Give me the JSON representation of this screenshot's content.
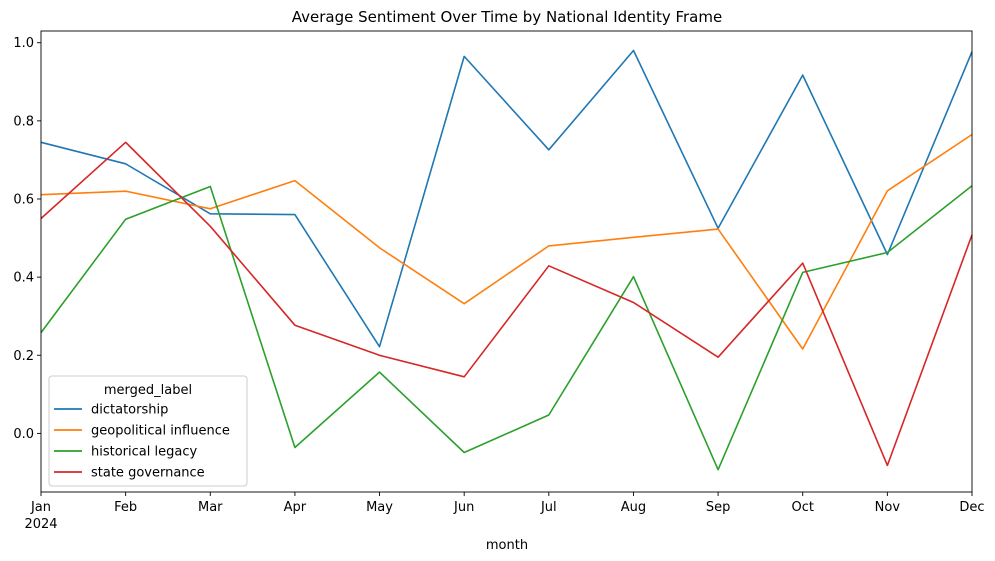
{
  "chart_data": {
    "type": "line",
    "title": "Average Sentiment Over Time by National Identity Frame",
    "xlabel": "month",
    "ylabel": "",
    "categories": [
      "Jan",
      "Feb",
      "Mar",
      "Apr",
      "May",
      "Jun",
      "Jul",
      "Aug",
      "Sep",
      "Oct",
      "Nov",
      "Dec"
    ],
    "year_label": "2024",
    "ylim": [
      -0.15,
      1.03
    ],
    "yticks": [
      0.0,
      0.2,
      0.4,
      0.6,
      0.8,
      1.0
    ],
    "ytick_labels": [
      "0.0",
      "0.2",
      "0.4",
      "0.6",
      "0.8",
      "1.0"
    ],
    "grid": false,
    "legend": {
      "title": "merged_label",
      "placement": "lower-left"
    },
    "series": [
      {
        "name": "dictatorship",
        "color": "#1f77b4",
        "values": [
          0.745,
          0.69,
          0.562,
          0.56,
          0.222,
          0.965,
          0.726,
          0.98,
          0.525,
          0.917,
          0.458,
          0.977
        ]
      },
      {
        "name": "geopolitical influence",
        "color": "#ff7f0e",
        "values": [
          0.611,
          0.62,
          0.575,
          0.647,
          0.475,
          0.332,
          0.48,
          0.502,
          0.523,
          0.216,
          0.621,
          0.765
        ]
      },
      {
        "name": "historical legacy",
        "color": "#2ca02c",
        "values": [
          0.258,
          0.548,
          0.632,
          -0.036,
          0.157,
          -0.049,
          0.047,
          0.401,
          -0.093,
          0.412,
          0.463,
          0.634
        ]
      },
      {
        "name": "state governance",
        "color": "#d62728",
        "values": [
          0.55,
          0.745,
          0.53,
          0.277,
          0.2,
          0.145,
          0.429,
          0.335,
          0.195,
          0.436,
          -0.082,
          0.508
        ]
      }
    ]
  }
}
